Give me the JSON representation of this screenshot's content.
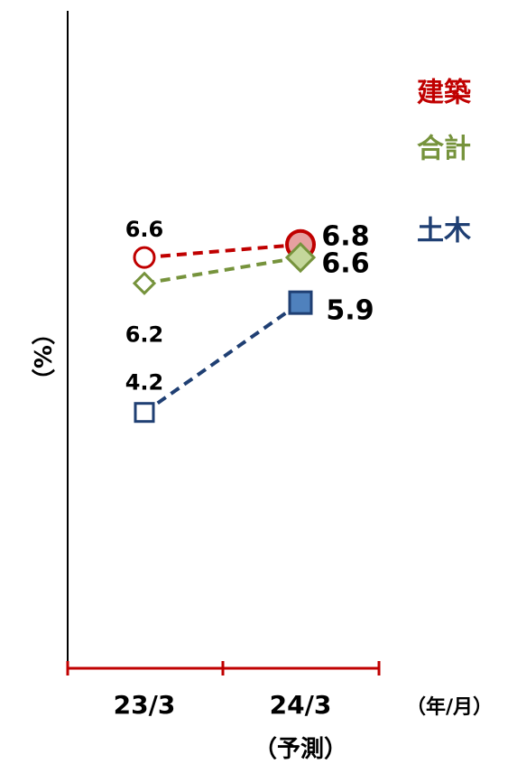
{
  "chart_data": {
    "type": "line",
    "categories": [
      "23/3",
      "24/3"
    ],
    "category_notes": [
      "",
      "（予測）"
    ],
    "x_unit": "（年/月）",
    "ylabel": "（%）",
    "series": [
      {
        "name": "建築",
        "values": [
          6.6,
          6.8
        ],
        "color": "#c00000",
        "marker": "circle"
      },
      {
        "name": "合計",
        "values": [
          6.2,
          6.6
        ],
        "color": "#76933c",
        "marker": "diamond"
      },
      {
        "name": "土木",
        "values": [
          4.2,
          5.9
        ],
        "color": "#1f3f73",
        "fill": "#4f81bd",
        "marker": "square"
      }
    ],
    "legend": "right",
    "grid": false
  }
}
